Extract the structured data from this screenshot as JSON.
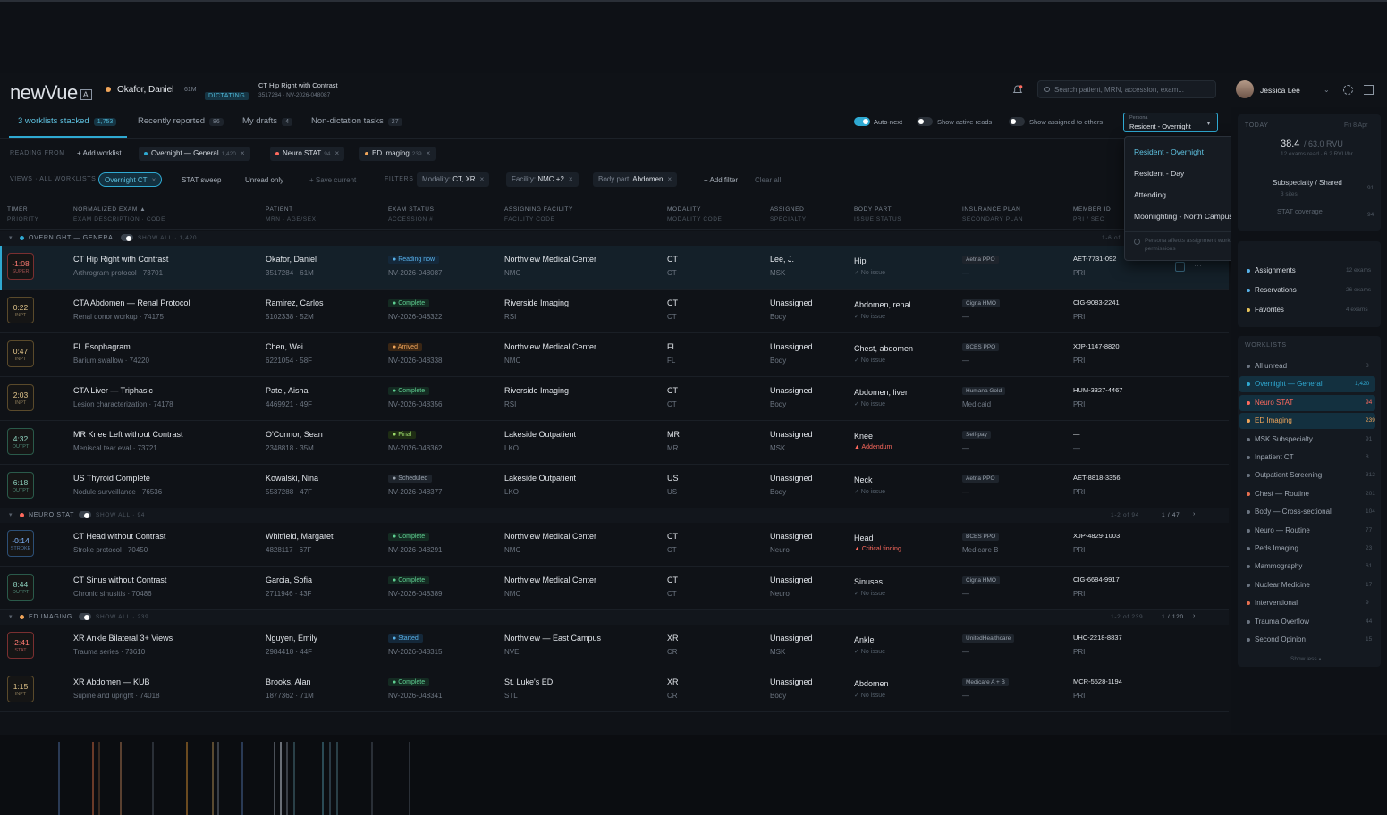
{
  "app": {
    "logo": "newVue",
    "logo_ai": "AI"
  },
  "patient_context": {
    "name": "Okafor, Daniel",
    "demo": "61M",
    "status": "DICTATING",
    "exam": "CT Hip Right with Contrast",
    "exam_sub": "3517284 · NV-2026-048087"
  },
  "search": {
    "placeholder": "Search patient, MRN, accession, exam..."
  },
  "user": {
    "name": "Jessica Lee"
  },
  "tabs": [
    {
      "label": "3 worklists stacked",
      "count": "1,753"
    },
    {
      "label": "Recently reported",
      "count": "86"
    },
    {
      "label": "My drafts",
      "count": "4"
    },
    {
      "label": "Non-dictation tasks",
      "count": "27"
    }
  ],
  "toggles": {
    "auto_next": "Auto-next",
    "show_active": "Show active reads",
    "show_assigned": "Show assigned to others"
  },
  "persona": {
    "label": "Persona",
    "value": "Resident - Overnight"
  },
  "persona_menu": {
    "items": [
      "Resident - Overnight",
      "Resident - Day",
      "Attending",
      "Moonlighting - North Campus"
    ],
    "check": "✓",
    "note": "Persona affects assignment workflow, not permissions"
  },
  "reading_from": {
    "label": "READING FROM",
    "add": "+ Add worklist",
    "chips": [
      {
        "label": "Overnight — General",
        "count": "1,420",
        "color": "#2fa9d2"
      },
      {
        "label": "Neuro STAT",
        "count": "94",
        "color": "#ff6a5e"
      },
      {
        "label": "ED Imaging",
        "count": "239",
        "color": "#f0a55a"
      }
    ]
  },
  "views": {
    "label": "VIEWS · ALL WORKLISTS",
    "items": [
      "Overnight CT",
      "STAT sweep",
      "Unread only"
    ],
    "save": "+ Save current"
  },
  "filters": {
    "label": "FILTERS",
    "chips": [
      {
        "k": "Modality:",
        "v": "CT, XR"
      },
      {
        "k": "Facility:",
        "v": "NMC +2"
      },
      {
        "k": "Body part:",
        "v": "Abdomen"
      }
    ],
    "add": "+ Add filter",
    "clear": "Clear all"
  },
  "columns": [
    {
      "h": "TIMER",
      "s": "PRIORITY"
    },
    {
      "h": "NORMALIZED EXAM ▲",
      "s": "EXAM DESCRIPTION · CODE"
    },
    {
      "h": "PATIENT",
      "s": "MRN · AGE/SEX"
    },
    {
      "h": "EXAM STATUS",
      "s": "ACCESSION #"
    },
    {
      "h": "ASSIGNING FACILITY",
      "s": "FACILITY CODE"
    },
    {
      "h": "MODALITY",
      "s": "MODALITY CODE"
    },
    {
      "h": "ASSIGNED",
      "s": "SPECIALTY"
    },
    {
      "h": "BODY PART",
      "s": "ISSUE STATUS"
    },
    {
      "h": "INSURANCE PLAN",
      "s": "SECONDARY PLAN"
    },
    {
      "h": "MEMBER ID",
      "s": "PRI / SEC"
    }
  ],
  "groups": [
    {
      "name": "OVERNIGHT — GENERAL",
      "show": "SHOW ALL · 1,420",
      "color": "#2fa9d2",
      "page": "1-6 of",
      "rows": [
        {
          "timer": "-1:08",
          "tl": "SUPER",
          "tc": "red",
          "exam": "CT Hip Right with Contrast",
          "desc": "Arthrogram protocol · 73701",
          "pt": "Okafor, Daniel",
          "mrn": "3517284 · 61M",
          "status": "Reading now",
          "sc": "p-blue",
          "acc": "NV-2026-048087",
          "fac": "Northview Medical Center",
          "fcode": "NMC",
          "mod": "CT",
          "mcode": "CT",
          "asg": "Lee, J.",
          "spec": "MSK",
          "body": "Hip",
          "issue": "✓ No issue",
          "ic": "ok",
          "plan": "Aetna PPO",
          "plan2": "—",
          "member": "AET-7731-092",
          "ps": "PRI"
        },
        {
          "timer": "0:22",
          "tl": "INPT",
          "tc": "",
          "exam": "CTA Abdomen — Renal Protocol",
          "desc": "Renal donor workup · 74175",
          "pt": "Ramirez, Carlos",
          "mrn": "5102338 · 52M",
          "status": "Complete",
          "sc": "p-green",
          "acc": "NV-2026-048322",
          "fac": "Riverside Imaging",
          "fcode": "RSI",
          "mod": "CT",
          "mcode": "CT",
          "asg": "Unassigned",
          "spec": "Body",
          "body": "Abdomen, renal",
          "issue": "✓ No issue",
          "ic": "ok",
          "plan": "Cigna HMO",
          "plan2": "—",
          "member": "CIG-9083-2241",
          "ps": "PRI"
        },
        {
          "timer": "0:47",
          "tl": "INPT",
          "tc": "",
          "exam": "FL Esophagram",
          "desc": "Barium swallow · 74220",
          "pt": "Chen, Wei",
          "mrn": "6221054 · 58F",
          "status": "Arrived",
          "sc": "p-orange",
          "acc": "NV-2026-048338",
          "fac": "Northview Medical Center",
          "fcode": "NMC",
          "mod": "FL",
          "mcode": "FL",
          "asg": "Unassigned",
          "spec": "Body",
          "body": "Chest, abdomen",
          "issue": "✓ No issue",
          "ic": "ok",
          "plan": "BCBS PPO",
          "plan2": "—",
          "member": "XJP-1147-8820",
          "ps": "PRI"
        },
        {
          "timer": "2:03",
          "tl": "INPT",
          "tc": "",
          "exam": "CTA Liver — Triphasic",
          "desc": "Lesion characterization · 74178",
          "pt": "Patel, Aisha",
          "mrn": "4469921 · 49F",
          "status": "Complete",
          "sc": "p-green",
          "acc": "NV-2026-048356",
          "fac": "Riverside Imaging",
          "fcode": "RSI",
          "mod": "CT",
          "mcode": "CT",
          "asg": "Unassigned",
          "spec": "Body",
          "body": "Abdomen, liver",
          "issue": "✓ No issue",
          "ic": "ok",
          "plan": "Humana Gold",
          "plan2": "Medicaid",
          "member": "HUM-3327-4467",
          "ps": "PRI"
        },
        {
          "timer": "4:32",
          "tl": "OUTPT",
          "tc": "teal",
          "exam": "MR Knee Left without Contrast",
          "desc": "Meniscal tear eval · 73721",
          "pt": "O'Connor, Sean",
          "mrn": "2348818 · 35M",
          "status": "Final",
          "sc": "p-lime",
          "acc": "NV-2026-048362",
          "fac": "Lakeside Outpatient",
          "fcode": "LKO",
          "mod": "MR",
          "mcode": "MR",
          "asg": "Unassigned",
          "spec": "MSK",
          "body": "Knee",
          "issue": "▲ Addendum",
          "ic": "red",
          "plan": "Self-pay",
          "plan2": "—",
          "member": "—",
          "ps": "—"
        },
        {
          "timer": "6:18",
          "tl": "OUTPT",
          "tc": "teal",
          "exam": "US Thyroid Complete",
          "desc": "Nodule surveillance · 76536",
          "pt": "Kowalski, Nina",
          "mrn": "5537288 · 47F",
          "status": "Scheduled",
          "sc": "p-grey",
          "acc": "NV-2026-048377",
          "fac": "Lakeside Outpatient",
          "fcode": "LKO",
          "mod": "US",
          "mcode": "US",
          "asg": "Unassigned",
          "spec": "Body",
          "body": "Neck",
          "issue": "✓ No issue",
          "ic": "ok",
          "plan": "Aetna PPO",
          "plan2": "—",
          "member": "AET-8818-3356",
          "ps": "PRI"
        }
      ]
    },
    {
      "name": "NEURO STAT",
      "show": "SHOW ALL · 94",
      "color": "#ff6a5e",
      "page": "1-2 of 94",
      "pager": "1 / 47",
      "rows": [
        {
          "timer": "-0:14",
          "tl": "STROKE",
          "tc": "blue",
          "exam": "CT Head without Contrast",
          "desc": "Stroke protocol · 70450",
          "pt": "Whitfield, Margaret",
          "mrn": "4828117 · 67F",
          "status": "Complete",
          "sc": "p-green",
          "acc": "NV-2026-048291",
          "fac": "Northview Medical Center",
          "fcode": "NMC",
          "mod": "CT",
          "mcode": "CT",
          "asg": "Unassigned",
          "spec": "Neuro",
          "body": "Head",
          "issue": "▲ Critical finding",
          "ic": "red",
          "plan": "BCBS PPO",
          "plan2": "Medicare B",
          "member": "XJP-4829-1003",
          "ps": "PRI"
        },
        {
          "timer": "8:44",
          "tl": "OUTPT",
          "tc": "teal",
          "exam": "CT Sinus without Contrast",
          "desc": "Chronic sinusitis · 70486",
          "pt": "Garcia, Sofia",
          "mrn": "2711946 · 43F",
          "status": "Complete",
          "sc": "p-green",
          "acc": "NV-2026-048389",
          "fac": "Northview Medical Center",
          "fcode": "NMC",
          "mod": "CT",
          "mcode": "CT",
          "asg": "Unassigned",
          "spec": "Neuro",
          "body": "Sinuses",
          "issue": "✓ No issue",
          "ic": "ok",
          "plan": "Cigna HMO",
          "plan2": "—",
          "member": "CIG-6684-9917",
          "ps": "PRI"
        }
      ]
    },
    {
      "name": "ED IMAGING",
      "show": "SHOW ALL · 239",
      "color": "#f0a55a",
      "page": "1-2 of 239",
      "pager": "1 / 120",
      "rows": [
        {
          "timer": "-2:41",
          "tl": "STAT",
          "tc": "red",
          "exam": "XR Ankle Bilateral 3+ Views",
          "desc": "Trauma series · 73610",
          "pt": "Nguyen, Emily",
          "mrn": "2984418 · 44F",
          "status": "Started",
          "sc": "p-blue",
          "acc": "NV-2026-048315",
          "fac": "Northview — East Campus",
          "fcode": "NVE",
          "mod": "XR",
          "mcode": "CR",
          "asg": "Unassigned",
          "spec": "MSK",
          "body": "Ankle",
          "issue": "✓ No issue",
          "ic": "ok",
          "plan": "UnitedHealthcare",
          "plan2": "—",
          "member": "UHC-2218-8837",
          "ps": "PRI"
        },
        {
          "timer": "1:15",
          "tl": "INPT",
          "tc": "",
          "exam": "XR Abdomen — KUB",
          "desc": "Supine and upright · 74018",
          "pt": "Brooks, Alan",
          "mrn": "1877362 · 71M",
          "status": "Complete",
          "sc": "p-green",
          "acc": "NV-2026-048341",
          "fac": "St. Luke's ED",
          "fcode": "STL",
          "mod": "XR",
          "mcode": "CR",
          "asg": "Unassigned",
          "spec": "Body",
          "body": "Abdomen",
          "issue": "✓ No issue",
          "ic": "ok",
          "plan": "Medicare A + B",
          "plan2": "—",
          "member": "MCR-5528-1194",
          "ps": "PRI"
        }
      ]
    }
  ],
  "sidebar": {
    "today": "TODAY",
    "date": "Fri 8 Apr",
    "rvu": "38.4",
    "rvu_goal": "/ 63.0 RVU",
    "rvu_sub": "12 exams read · 6.2 RVU/hr",
    "sub1": "Subspecialty / Shared",
    "sub1_c": "91",
    "sub1_s": "3 sites",
    "stat_cov": "STAT coverage",
    "stat_c": "94",
    "quick": [
      {
        "label": "Assignments",
        "count": "12 exams",
        "color": "#58b1e8"
      },
      {
        "label": "Reservations",
        "count": "26 exams",
        "color": "#58b1e8"
      },
      {
        "label": "Favorites",
        "count": "4 exams",
        "color": "#e8c45a"
      }
    ],
    "worklists_label": "WORKLISTS",
    "worklists": [
      {
        "label": "All unread",
        "count": "8",
        "color": "#6b7480"
      },
      {
        "label": "Overnight — General",
        "count": "1,420",
        "color": "#2fa9d2",
        "hl": true
      },
      {
        "label": "Neuro STAT",
        "count": "94",
        "color": "#ff6a5e",
        "hl": true
      },
      {
        "label": "ED Imaging",
        "count": "239",
        "color": "#f0a55a",
        "hl": true
      },
      {
        "label": "MSK Subspecialty",
        "count": "91",
        "color": "#6b7480"
      },
      {
        "label": "Inpatient CT",
        "count": "8",
        "color": "#6b7480"
      },
      {
        "label": "Outpatient Screening",
        "count": "312",
        "color": "#6b7480"
      },
      {
        "label": "Chest — Routine",
        "count": "201",
        "color": "#e87050"
      },
      {
        "label": "Body — Cross-sectional",
        "count": "104",
        "color": "#6b7480"
      },
      {
        "label": "Neuro — Routine",
        "count": "77",
        "color": "#6b7480"
      },
      {
        "label": "Peds Imaging",
        "count": "23",
        "color": "#6b7480"
      },
      {
        "label": "Mammography",
        "count": "61",
        "color": "#6b7480"
      },
      {
        "label": "Nuclear Medicine",
        "count": "17",
        "color": "#6b7480"
      },
      {
        "label": "Interventional",
        "count": "9",
        "color": "#e87050"
      },
      {
        "label": "Trauma Overflow",
        "count": "44",
        "color": "#6b7480"
      },
      {
        "label": "Second Opinion",
        "count": "15",
        "color": "#6b7480"
      }
    ],
    "show_less": "Show less ▴"
  }
}
